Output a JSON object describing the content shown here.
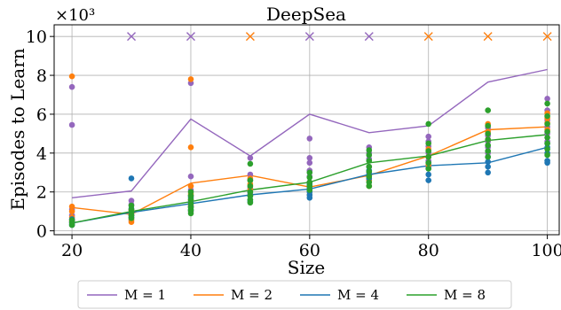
{
  "chart_data": {
    "type": "scatter",
    "title": "DeepSea",
    "xlabel": "Size",
    "ylabel": "Episodes to Learn",
    "y_multiplier_label": "×10³",
    "xlim": [
      17,
      102
    ],
    "ylim": [
      -0.2,
      10.6
    ],
    "x_ticks": [
      20,
      40,
      60,
      80,
      100
    ],
    "y_ticks": [
      0,
      2,
      4,
      6,
      8,
      10
    ],
    "grid": true,
    "legend_position": "bottom-outside",
    "timeout_value": 10,
    "series": [
      {
        "name": "M = 1",
        "color": "#9467bd",
        "mean_x": [
          20,
          30,
          40,
          50,
          60,
          70,
          80,
          90,
          100
        ],
        "mean_y": [
          1.7,
          2.05,
          5.75,
          3.85,
          6.0,
          5.05,
          5.4,
          7.65,
          8.3
        ],
        "points": [
          [
            20,
            7.4
          ],
          [
            20,
            5.45
          ],
          [
            20,
            1.1
          ],
          [
            20,
            0.8
          ],
          [
            20,
            0.6
          ],
          [
            20,
            0.45
          ],
          [
            30,
            1.55
          ],
          [
            30,
            1.35
          ],
          [
            30,
            1.1
          ],
          [
            30,
            0.9
          ],
          [
            30,
            0.7
          ],
          [
            30,
            0.55
          ],
          [
            40,
            7.6
          ],
          [
            40,
            2.8
          ],
          [
            40,
            2.1
          ],
          [
            40,
            1.8
          ],
          [
            40,
            1.5
          ],
          [
            40,
            1.25
          ],
          [
            40,
            1.0
          ],
          [
            50,
            3.75
          ],
          [
            50,
            2.9
          ],
          [
            50,
            2.6
          ],
          [
            50,
            2.2
          ],
          [
            50,
            1.9
          ],
          [
            60,
            4.75
          ],
          [
            60,
            3.75
          ],
          [
            60,
            3.5
          ],
          [
            60,
            3.1
          ],
          [
            60,
            2.8
          ],
          [
            60,
            2.5
          ],
          [
            60,
            2.2
          ],
          [
            70,
            4.3
          ],
          [
            70,
            4.0
          ],
          [
            70,
            3.7
          ],
          [
            70,
            3.3
          ],
          [
            70,
            3.0
          ],
          [
            70,
            2.7
          ],
          [
            80,
            4.85
          ],
          [
            80,
            4.6
          ],
          [
            80,
            4.35
          ],
          [
            80,
            4.0
          ],
          [
            80,
            3.6
          ],
          [
            80,
            3.3
          ],
          [
            90,
            5.3
          ],
          [
            90,
            4.9
          ],
          [
            90,
            4.6
          ],
          [
            90,
            4.3
          ],
          [
            90,
            4.0
          ],
          [
            100,
            6.8
          ],
          [
            100,
            6.2
          ],
          [
            100,
            5.7
          ],
          [
            100,
            5.35
          ],
          [
            100,
            5.0
          ],
          [
            100,
            4.6
          ]
        ],
        "timeout_x": [
          30,
          40,
          60,
          70
        ]
      },
      {
        "name": "M = 2",
        "color": "#ff7f0e",
        "mean_x": [
          20,
          30,
          40,
          50,
          60,
          70,
          80,
          90,
          100
        ],
        "mean_y": [
          1.2,
          0.85,
          2.45,
          2.85,
          2.25,
          2.85,
          3.85,
          5.2,
          5.35
        ],
        "points": [
          [
            20,
            7.95
          ],
          [
            20,
            1.25
          ],
          [
            20,
            1.0
          ],
          [
            20,
            0.7
          ],
          [
            20,
            0.5
          ],
          [
            30,
            1.05
          ],
          [
            30,
            0.8
          ],
          [
            30,
            0.6
          ],
          [
            30,
            0.45
          ],
          [
            40,
            7.8
          ],
          [
            40,
            4.3
          ],
          [
            40,
            2.3
          ],
          [
            40,
            1.9
          ],
          [
            40,
            1.6
          ],
          [
            40,
            1.3
          ],
          [
            50,
            2.7
          ],
          [
            50,
            2.4
          ],
          [
            50,
            2.1
          ],
          [
            60,
            2.4
          ],
          [
            60,
            2.1
          ],
          [
            60,
            1.85
          ],
          [
            70,
            2.6
          ],
          [
            70,
            2.3
          ],
          [
            80,
            4.2
          ],
          [
            80,
            3.8
          ],
          [
            80,
            3.4
          ],
          [
            90,
            5.5
          ],
          [
            90,
            5.1
          ],
          [
            90,
            4.7
          ],
          [
            100,
            6.05
          ],
          [
            100,
            5.8
          ],
          [
            100,
            5.55
          ],
          [
            100,
            5.2
          ]
        ],
        "timeout_x": [
          50,
          80,
          90,
          100
        ]
      },
      {
        "name": "M = 4",
        "color": "#1f77b4",
        "mean_x": [
          20,
          30,
          40,
          50,
          60,
          70,
          80,
          90,
          100
        ],
        "mean_y": [
          0.4,
          0.95,
          1.4,
          1.85,
          2.15,
          2.9,
          3.35,
          3.5,
          4.3
        ],
        "points": [
          [
            20,
            0.6
          ],
          [
            20,
            0.45
          ],
          [
            20,
            0.35
          ],
          [
            20,
            0.3
          ],
          [
            30,
            2.7
          ],
          [
            30,
            1.15
          ],
          [
            30,
            0.95
          ],
          [
            30,
            0.8
          ],
          [
            30,
            0.7
          ],
          [
            40,
            1.7
          ],
          [
            40,
            1.45
          ],
          [
            40,
            1.25
          ],
          [
            40,
            1.1
          ],
          [
            50,
            2.0
          ],
          [
            50,
            1.8
          ],
          [
            50,
            1.6
          ],
          [
            50,
            1.5
          ],
          [
            60,
            2.4
          ],
          [
            60,
            2.2
          ],
          [
            60,
            2.0
          ],
          [
            60,
            1.85
          ],
          [
            60,
            1.7
          ],
          [
            70,
            3.1
          ],
          [
            70,
            2.9
          ],
          [
            70,
            2.7
          ],
          [
            80,
            3.5
          ],
          [
            80,
            3.2
          ],
          [
            80,
            2.9
          ],
          [
            80,
            2.6
          ],
          [
            90,
            3.8
          ],
          [
            90,
            3.55
          ],
          [
            90,
            3.3
          ],
          [
            90,
            3.0
          ],
          [
            100,
            4.5
          ],
          [
            100,
            4.3
          ],
          [
            100,
            4.0
          ],
          [
            100,
            3.6
          ],
          [
            100,
            3.5
          ]
        ],
        "timeout_x": []
      },
      {
        "name": "M = 8",
        "color": "#2ca02c",
        "mean_x": [
          20,
          30,
          40,
          50,
          60,
          70,
          80,
          90,
          100
        ],
        "mean_y": [
          0.4,
          1.0,
          1.5,
          2.1,
          2.5,
          3.5,
          3.85,
          4.65,
          4.95
        ],
        "points": [
          [
            20,
            0.55
          ],
          [
            20,
            0.4
          ],
          [
            20,
            0.3
          ],
          [
            30,
            1.3
          ],
          [
            30,
            1.1
          ],
          [
            30,
            0.95
          ],
          [
            30,
            0.8
          ],
          [
            30,
            0.65
          ],
          [
            40,
            2.0
          ],
          [
            40,
            1.8
          ],
          [
            40,
            1.6
          ],
          [
            40,
            1.4
          ],
          [
            40,
            1.2
          ],
          [
            40,
            1.05
          ],
          [
            40,
            0.9
          ],
          [
            50,
            3.45
          ],
          [
            50,
            2.6
          ],
          [
            50,
            2.3
          ],
          [
            50,
            2.0
          ],
          [
            50,
            1.8
          ],
          [
            50,
            1.6
          ],
          [
            50,
            1.45
          ],
          [
            60,
            3.0
          ],
          [
            60,
            2.75
          ],
          [
            60,
            2.5
          ],
          [
            60,
            2.3
          ],
          [
            60,
            2.1
          ],
          [
            70,
            4.15
          ],
          [
            70,
            3.9
          ],
          [
            70,
            3.6
          ],
          [
            70,
            3.3
          ],
          [
            70,
            3.05
          ],
          [
            70,
            2.8
          ],
          [
            70,
            2.5
          ],
          [
            70,
            2.3
          ],
          [
            80,
            5.5
          ],
          [
            80,
            4.5
          ],
          [
            80,
            4.1
          ],
          [
            80,
            3.8
          ],
          [
            80,
            3.5
          ],
          [
            80,
            3.2
          ],
          [
            90,
            6.2
          ],
          [
            90,
            5.4
          ],
          [
            90,
            5.0
          ],
          [
            90,
            4.7
          ],
          [
            90,
            4.4
          ],
          [
            90,
            4.1
          ],
          [
            90,
            3.8
          ],
          [
            100,
            6.55
          ],
          [
            100,
            5.9
          ],
          [
            100,
            5.5
          ],
          [
            100,
            5.1
          ],
          [
            100,
            4.8
          ],
          [
            100,
            4.5
          ],
          [
            100,
            4.2
          ],
          [
            100,
            3.9
          ]
        ],
        "timeout_x": []
      }
    ]
  }
}
